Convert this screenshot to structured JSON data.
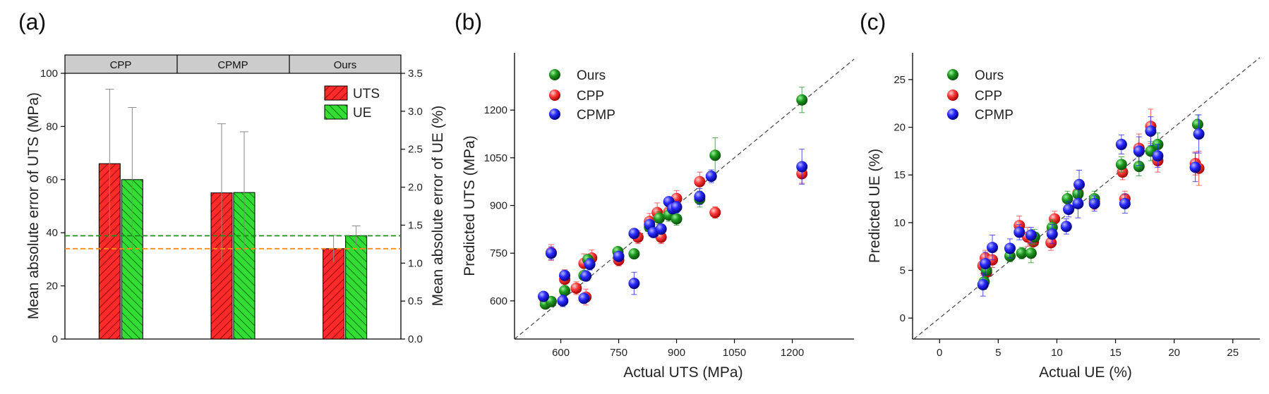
{
  "colors": {
    "uts_bar": "#ff2a2a",
    "ue_bar": "#33cc33",
    "dash_green": "#1a8c1a",
    "dash_orange": "#ff8c1a",
    "ours": "#1a8a1a",
    "cpp": "#ff3333",
    "cpmp": "#1a1aff",
    "group_band": "#cccccc"
  },
  "chart_data": [
    {
      "type": "bar",
      "panel_label": "(a)",
      "categories": [
        "CPP",
        "CPMP",
        "Ours"
      ],
      "series": [
        {
          "name": "UTS",
          "axis": "left",
          "values": [
            66,
            55,
            34
          ],
          "errors": [
            28,
            26,
            5
          ]
        },
        {
          "name": "UE",
          "axis": "right",
          "values": [
            2.1,
            1.93,
            1.36
          ],
          "errors": [
            0.95,
            0.8,
            0.13
          ]
        }
      ],
      "ylabel": "Mean absolute error of UTS (MPa)",
      "ylabel_right": "Mean absolute error of UE (%)",
      "ylim": [
        0,
        100
      ],
      "yticks": [
        "0",
        "20",
        "40",
        "60",
        "80",
        "100"
      ],
      "yticks_values": [
        0,
        20,
        40,
        60,
        80,
        100
      ],
      "ylim_right": [
        0,
        3.5
      ],
      "yticks_right": [
        "0.0",
        "0.5",
        "1.0",
        "1.5",
        "2.0",
        "2.5",
        "3.0",
        "3.5"
      ],
      "yticks_right_values": [
        0,
        0.5,
        1.0,
        1.5,
        2.0,
        2.5,
        3.0,
        3.5
      ],
      "reference_lines": [
        {
          "color": "green",
          "axis": "right",
          "value": 1.36
        },
        {
          "color": "orange",
          "axis": "left",
          "value": 34
        }
      ],
      "legend": [
        "UTS",
        "UE"
      ]
    },
    {
      "type": "scatter",
      "panel_label": "(b)",
      "xlabel": "Actual UTS (MPa)",
      "ylabel": "Predicted UTS (MPa)",
      "xlim": [
        480,
        1360
      ],
      "ylim": [
        480,
        1380
      ],
      "xticks": [
        "600",
        "750",
        "900",
        "1050",
        "1200"
      ],
      "xticks_values": [
        600,
        750,
        900,
        1050,
        1200
      ],
      "yticks": [
        "600",
        "750",
        "900",
        "1050",
        "1200"
      ],
      "yticks_values": [
        600,
        750,
        900,
        1050,
        1200
      ],
      "legend": [
        "Ours",
        "CPP",
        "CPMP"
      ],
      "series": [
        {
          "name": "Ours",
          "points": [
            [
              560,
              590,
              10
            ],
            [
              575,
              598,
              10
            ],
            [
              610,
              632,
              12
            ],
            [
              660,
              680,
              12
            ],
            [
              670,
              730,
              15
            ],
            [
              748,
              755,
              12
            ],
            [
              790,
              748,
              15
            ],
            [
              830,
              832,
              20
            ],
            [
              855,
              860,
              20
            ],
            [
              880,
              870,
              20
            ],
            [
              900,
              858,
              20
            ],
            [
              960,
              920,
              25
            ],
            [
              1000,
              1058,
              55
            ],
            [
              1225,
              1232,
              40
            ]
          ]
        },
        {
          "name": "CPP",
          "points": [
            [
              560,
              598,
              12
            ],
            [
              575,
              752,
              25
            ],
            [
              610,
              668,
              30
            ],
            [
              640,
              640,
              20
            ],
            [
              660,
              718,
              30
            ],
            [
              665,
              612,
              25
            ],
            [
              680,
              735,
              25
            ],
            [
              750,
              728,
              18
            ],
            [
              800,
              800,
              20
            ],
            [
              830,
              850,
              25
            ],
            [
              850,
              878,
              30
            ],
            [
              860,
              800,
              20
            ],
            [
              880,
              880,
              25
            ],
            [
              900,
              922,
              25
            ],
            [
              960,
              975,
              30
            ],
            [
              1000,
              878,
              18
            ],
            [
              1225,
              1000,
              30
            ]
          ]
        },
        {
          "name": "CPMP",
          "points": [
            [
              555,
              614,
              10
            ],
            [
              575,
              750,
              20
            ],
            [
              605,
              600,
              18
            ],
            [
              610,
              680,
              15
            ],
            [
              660,
              608,
              15
            ],
            [
              665,
              678,
              15
            ],
            [
              675,
              715,
              18
            ],
            [
              750,
              740,
              15
            ],
            [
              790,
              812,
              15
            ],
            [
              790,
              655,
              35
            ],
            [
              830,
              840,
              15
            ],
            [
              840,
              815,
              15
            ],
            [
              860,
              826,
              15
            ],
            [
              880,
              912,
              15
            ],
            [
              890,
              890,
              15
            ],
            [
              900,
              895,
              18
            ],
            [
              960,
              928,
              25
            ],
            [
              990,
              992,
              20
            ],
            [
              1225,
              1022,
              55
            ]
          ]
        }
      ]
    },
    {
      "type": "scatter",
      "panel_label": "(c)",
      "xlabel": "Actual UE (%)",
      "ylabel": "Predicted UE (%)",
      "xlim": [
        -2.3,
        27.3
      ],
      "ylim": [
        -2.2,
        27.8
      ],
      "xticks": [
        "0",
        "5",
        "10",
        "15",
        "20",
        "25"
      ],
      "xticks_values": [
        0,
        5,
        10,
        15,
        20,
        25
      ],
      "yticks": [
        "0",
        "5",
        "10",
        "15",
        "20",
        "25"
      ],
      "yticks_values": [
        0,
        5,
        10,
        15,
        20,
        25
      ],
      "legend": [
        "Ours",
        "CPP",
        "CPMP"
      ],
      "series": [
        {
          "name": "Ours",
          "points": [
            [
              3.8,
              3.8,
              0.8
            ],
            [
              4.0,
              5.0,
              0.8
            ],
            [
              6.0,
              6.5,
              0.6
            ],
            [
              7.0,
              6.8,
              0.6
            ],
            [
              7.8,
              6.8,
              1.0
            ],
            [
              8.1,
              8.5,
              0.8
            ],
            [
              9.6,
              9.5,
              0.8
            ],
            [
              10.9,
              12.5,
              0.8
            ],
            [
              11.8,
              13.0,
              0.8
            ],
            [
              13.2,
              12.5,
              0.8
            ],
            [
              15.5,
              16.1,
              0.8
            ],
            [
              17.0,
              15.9,
              1.0
            ],
            [
              18.0,
              17.5,
              1.0
            ],
            [
              18.6,
              18.2,
              1.2
            ],
            [
              22.0,
              20.3,
              1.0
            ]
          ]
        },
        {
          "name": "CPP",
          "points": [
            [
              3.7,
              5.5,
              1.0
            ],
            [
              3.9,
              6.3,
              0.8
            ],
            [
              4.0,
              4.8,
              0.8
            ],
            [
              4.5,
              6.1,
              0.8
            ],
            [
              6.8,
              9.7,
              1.0
            ],
            [
              7.5,
              8.5,
              1.0
            ],
            [
              8.0,
              8.0,
              1.0
            ],
            [
              9.5,
              7.9,
              0.8
            ],
            [
              9.8,
              10.4,
              0.8
            ],
            [
              11.8,
              13.1,
              1.0
            ],
            [
              13.2,
              12.2,
              0.8
            ],
            [
              15.6,
              15.3,
              0.8
            ],
            [
              15.8,
              12.5,
              0.8
            ],
            [
              17.0,
              17.8,
              1.5
            ],
            [
              18.0,
              20.1,
              1.8
            ],
            [
              18.6,
              16.5,
              1.2
            ],
            [
              21.8,
              16.2,
              1.2
            ],
            [
              22.1,
              15.7,
              1.8
            ]
          ]
        },
        {
          "name": "CPMP",
          "points": [
            [
              3.7,
              3.5,
              1.2
            ],
            [
              3.9,
              5.7,
              1.2
            ],
            [
              4.5,
              7.4,
              1.3
            ],
            [
              6.0,
              7.3,
              1.0
            ],
            [
              6.8,
              9.0,
              0.8
            ],
            [
              7.8,
              8.7,
              0.8
            ],
            [
              9.6,
              8.8,
              1.0
            ],
            [
              10.8,
              9.6,
              0.8
            ],
            [
              11.0,
              11.4,
              0.8
            ],
            [
              11.8,
              12.0,
              1.5
            ],
            [
              11.9,
              14.0,
              1.5
            ],
            [
              13.2,
              12.0,
              0.8
            ],
            [
              15.5,
              18.2,
              1.0
            ],
            [
              15.8,
              12.0,
              1.0
            ],
            [
              17.0,
              17.5,
              1.5
            ],
            [
              18.0,
              19.6,
              1.5
            ],
            [
              18.6,
              17.0,
              1.2
            ],
            [
              21.8,
              15.8,
              1.5
            ],
            [
              22.1,
              19.3,
              2.0
            ]
          ]
        }
      ]
    }
  ]
}
